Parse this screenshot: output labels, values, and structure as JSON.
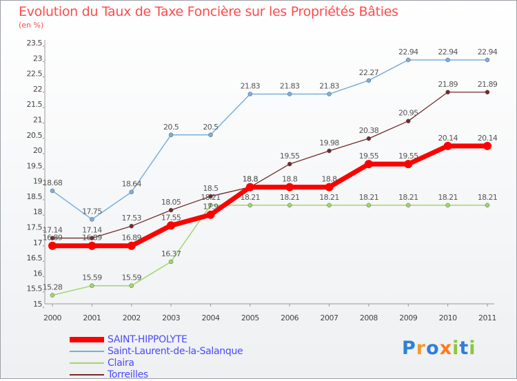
{
  "page": {
    "title": "Evolution du Taux de Taxe Foncière sur les Propriétés Bâties",
    "subtitle": "(en %)"
  },
  "legend": [
    "SAINT-HIPPOLYTE",
    "Saint-Laurent-de-la-Salanque",
    "Claira",
    "Torreilles"
  ],
  "logo": {
    "text": "Proxiti"
  },
  "chart_data": {
    "type": "line",
    "title": "Evolution du Taux de Taxe Foncière sur les Propriétés Bâties",
    "ylabel": "(en %)",
    "x": [
      "2000",
      "2001",
      "2002",
      "2003",
      "2004",
      "2005",
      "2006",
      "2007",
      "2008",
      "2009",
      "2010",
      "2011"
    ],
    "yticks": [
      "15",
      "15.5",
      "16",
      "16.5",
      "17",
      "17.5",
      "18",
      "18.5",
      "19",
      "19.5",
      "20",
      "20.5",
      "21",
      "21.5",
      "22",
      "22.5",
      "23",
      "23.5"
    ],
    "ylim": [
      15,
      23.5
    ],
    "grid": false,
    "legend_position": "bottom-left",
    "series": [
      {
        "name": "Torreilles",
        "color": "#722a2a",
        "width": 1.3,
        "marker": 3,
        "values": [
          17.14,
          17.14,
          17.53,
          18.05,
          18.5,
          18.8,
          19.55,
          19.98,
          20.38,
          20.95,
          21.89,
          21.89
        ],
        "labels": [
          "17.14",
          "17.14",
          "17.53",
          "18.05",
          "18.5",
          "18.8",
          "19.55",
          "19.98",
          "20.38",
          "20.95",
          "21.89",
          "21.89"
        ]
      },
      {
        "name": "Claira",
        "color": "#a0d86c",
        "width": 1.5,
        "marker": 3,
        "values": [
          15.28,
          15.59,
          15.59,
          16.37,
          18.21,
          18.21,
          18.21,
          18.21,
          18.21,
          18.21,
          18.21,
          18.21
        ],
        "labels": [
          "15.28",
          "15.59",
          "15.59",
          "16.37",
          "18.21",
          "18.21",
          "18.21",
          "18.21",
          "18.21",
          "18.21",
          "18.21",
          "18.21"
        ]
      },
      {
        "name": "Saint-Laurent-de-la-Salanque",
        "color": "#7aaede",
        "width": 1.5,
        "marker": 3,
        "values": [
          18.68,
          17.75,
          18.64,
          20.5,
          20.5,
          21.83,
          21.83,
          21.83,
          22.27,
          22.94,
          22.94,
          22.94
        ],
        "labels": [
          "18.68",
          "17.75",
          "18.64",
          "20.5",
          "20.5",
          "21.83",
          "21.83",
          "21.83",
          "22.27",
          "22.94",
          "22.94",
          "22.94"
        ]
      },
      {
        "name": "SAINT-HIPPOLYTE",
        "color": "#ff0000",
        "width": 7,
        "marker": 6,
        "values": [
          16.89,
          16.89,
          16.89,
          17.55,
          17.9,
          18.8,
          18.8,
          18.8,
          19.55,
          19.55,
          20.14,
          20.14
        ],
        "labels": [
          "16.89",
          "16.89",
          "16.89",
          "17.55",
          "17.9",
          "18.8",
          "18.8",
          "18.8",
          "19.55",
          "19.55",
          "20.14",
          "20.14"
        ]
      }
    ]
  }
}
